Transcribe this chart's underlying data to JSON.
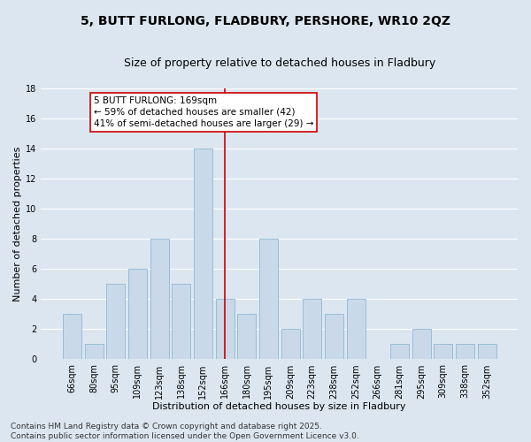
{
  "title": "5, BUTT FURLONG, FLADBURY, PERSHORE, WR10 2QZ",
  "subtitle": "Size of property relative to detached houses in Fladbury",
  "xlabel": "Distribution of detached houses by size in Fladbury",
  "ylabel": "Number of detached properties",
  "categories": [
    "66sqm",
    "80sqm",
    "95sqm",
    "109sqm",
    "123sqm",
    "138sqm",
    "152sqm",
    "166sqm",
    "180sqm",
    "195sqm",
    "209sqm",
    "223sqm",
    "238sqm",
    "252sqm",
    "266sqm",
    "281sqm",
    "295sqm",
    "309sqm",
    "338sqm",
    "352sqm"
  ],
  "values": [
    3,
    1,
    5,
    6,
    8,
    5,
    14,
    4,
    3,
    8,
    2,
    4,
    3,
    4,
    0,
    1,
    2,
    1,
    1,
    1
  ],
  "bar_color": "#c9d9ea",
  "bar_edge_color": "#8fb8d4",
  "vline_index": 7,
  "vline_color": "#cc0000",
  "annotation_text": "5 BUTT FURLONG: 169sqm\n← 59% of detached houses are smaller (42)\n41% of semi-detached houses are larger (29) →",
  "annotation_box_facecolor": "#ffffff",
  "annotation_box_edgecolor": "#cc0000",
  "ylim": [
    0,
    18
  ],
  "yticks": [
    0,
    2,
    4,
    6,
    8,
    10,
    12,
    14,
    16,
    18
  ],
  "background_color": "#dce6f0",
  "grid_color": "#ffffff",
  "footer_text": "Contains HM Land Registry data © Crown copyright and database right 2025.\nContains public sector information licensed under the Open Government Licence v3.0.",
  "title_fontsize": 10,
  "subtitle_fontsize": 9,
  "xlabel_fontsize": 8,
  "ylabel_fontsize": 8,
  "tick_fontsize": 7,
  "annotation_fontsize": 7.5,
  "footer_fontsize": 6.5
}
